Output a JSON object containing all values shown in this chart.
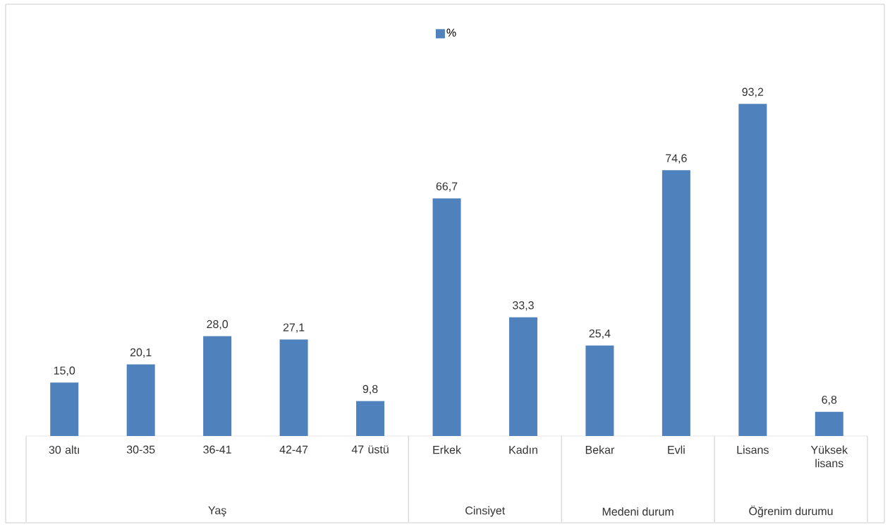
{
  "chart_data": {
    "type": "bar",
    "categories": [
      "30 altı",
      "30-35",
      "36-41",
      "42-47",
      "47 üstü",
      "Erkek",
      "Kadın",
      "Bekar",
      "Evli",
      "Lisans",
      "Yüksek lisans"
    ],
    "series": [
      {
        "name": "%",
        "color": "#4f81bd",
        "values": [
          15.0,
          20.1,
          28.0,
          27.1,
          9.8,
          66.7,
          33.3,
          25.4,
          74.6,
          93.2,
          6.8
        ],
        "value_labels": [
          "15,0",
          "20,1",
          "28,0",
          "27,1",
          "9,8",
          "66,7",
          "33,3",
          "25,4",
          "74,6",
          "93,2",
          "6,8"
        ]
      }
    ],
    "legend": "top",
    "annotations": [
      "Yaş",
      "Cinsiyet",
      "Medeni durum",
      "Öğrenim durumu"
    ]
  }
}
